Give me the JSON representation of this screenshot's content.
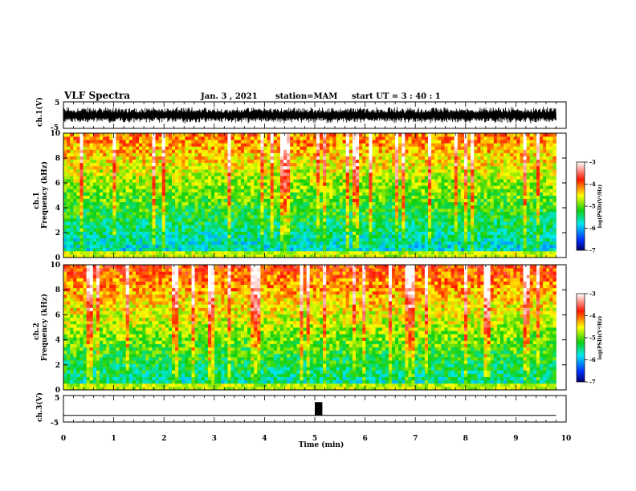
{
  "header": {
    "title": "VLF Spectra",
    "date": "Jan. 3 , 2021",
    "station": "station=MAM",
    "start": "start UT = 3 : 40 : 1"
  },
  "panels": {
    "ch1_wave_label": "ch.1(V)",
    "ch1_spec_label": "ch.1",
    "ch2_spec_label": "ch.2",
    "freq_label": "Frequency (kHz)",
    "ch3_wave_label": "ch.3(V)",
    "xlabel": "Time (min)",
    "colorbar_label": "log(PSD)(V²/Hz)"
  },
  "colors": {
    "colormap": [
      "#00007a",
      "#0050ff",
      "#00e0e0",
      "#20d020",
      "#ffff00",
      "#ff2000",
      "#ffffff"
    ]
  },
  "chart_data": [
    {
      "type": "line",
      "name": "ch1-waveform",
      "ylabel": "ch.1(V)",
      "ylim": [
        -5,
        5
      ],
      "yticks": [
        "5",
        "-5"
      ],
      "xlim": [
        0,
        10
      ],
      "note_values": "continuous waveform, amplitude roughly ±3 V over 0 to 9.8 min"
    },
    {
      "type": "heatmap",
      "name": "ch1-spectrogram",
      "xlim": [
        0,
        10
      ],
      "ylim": [
        0,
        10
      ],
      "ylabel": "Frequency (kHz)",
      "yticks": [
        "0",
        "2",
        "4",
        "6",
        "8",
        "10"
      ],
      "data_end_min": 9.8,
      "colorbar": {
        "range": [
          -7,
          -3
        ],
        "ticks": [
          "-3",
          "-4",
          "-5",
          "-6",
          "-7"
        ],
        "label": "log(PSD)(V²/Hz)"
      }
    },
    {
      "type": "heatmap",
      "name": "ch2-spectrogram",
      "xlim": [
        0,
        10
      ],
      "ylim": [
        0,
        10
      ],
      "ylabel": "Frequency (kHz)",
      "yticks": [
        "0",
        "2",
        "4",
        "6",
        "8",
        "10"
      ],
      "data_end_min": 9.8,
      "colorbar": {
        "range": [
          -7,
          -3
        ],
        "ticks": [
          "-3",
          "-4",
          "-5",
          "-6",
          "-7"
        ],
        "label": "log(PSD)(V²/Hz)"
      }
    },
    {
      "type": "line",
      "name": "ch3-waveform",
      "ylabel": "ch.3(V)",
      "ylim": [
        -5,
        5
      ],
      "yticks": [
        "5",
        "-5"
      ],
      "xlim": [
        0,
        10
      ],
      "baseline_v": -2.5,
      "pulse": {
        "t_start_min": 5.0,
        "t_end_min": 5.15,
        "high_v": 2.5,
        "low_v": -2.5
      }
    }
  ],
  "xaxis": {
    "label": "Time (min)",
    "ticks": [
      "0",
      "1",
      "2",
      "3",
      "4",
      "5",
      "6",
      "7",
      "8",
      "9",
      "10"
    ]
  }
}
